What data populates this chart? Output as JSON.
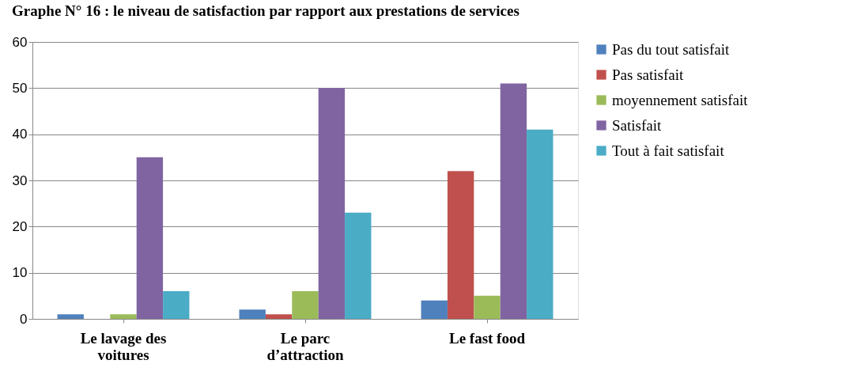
{
  "chart_data": {
    "type": "bar",
    "title": "Graphe N° 16 : le niveau de satisfaction par rapport aux prestations de services",
    "categories": [
      "Le lavage des voitures",
      "Le parc d’attraction",
      "Le fast food"
    ],
    "series": [
      {
        "name": "Pas du tout satisfait",
        "color": "#4f81bd",
        "values": [
          1,
          2,
          4
        ]
      },
      {
        "name": "Pas satisfait",
        "color": "#c0504d",
        "values": [
          0,
          1,
          32
        ]
      },
      {
        "name": "moyennement satisfait",
        "color": "#9bbb59",
        "values": [
          1,
          6,
          5
        ]
      },
      {
        "name": "Satisfait",
        "color": "#8064a2",
        "values": [
          35,
          50,
          51
        ]
      },
      {
        "name": "Tout à fait satisfait",
        "color": "#4bacc6",
        "values": [
          6,
          23,
          41
        ]
      }
    ],
    "ylim": [
      0,
      60
    ],
    "yticks": [
      0,
      10,
      20,
      30,
      40,
      50,
      60
    ],
    "grid": "y",
    "legend": "right"
  }
}
